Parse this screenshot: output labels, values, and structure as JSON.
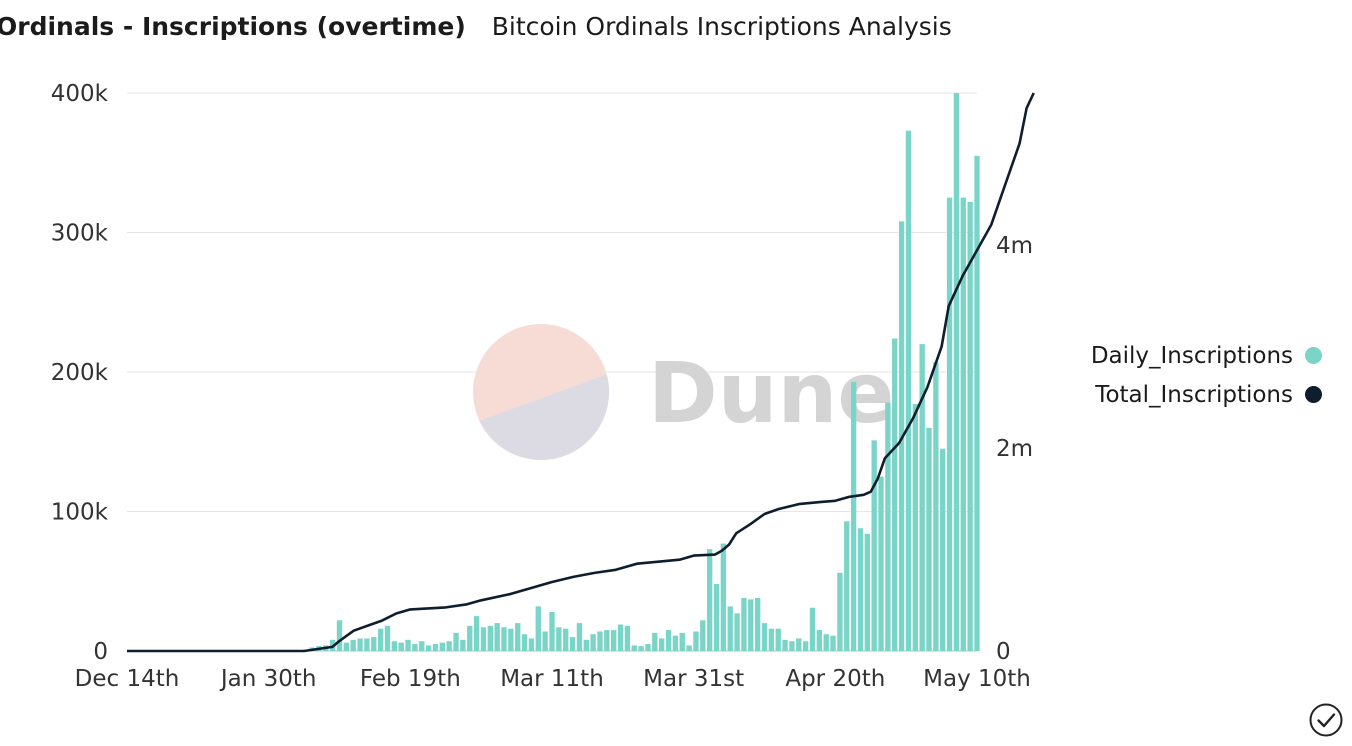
{
  "header": {
    "title": "Ordinals - Inscriptions (overtime)",
    "subtitle": "Bitcoin Ordinals Inscriptions Analysis"
  },
  "watermark": "Dune",
  "colors": {
    "bar": "#7ad4c8",
    "line": "#0e1e2e",
    "grid": "#e6e6e6",
    "logo_top": "#f6dcd4",
    "logo_bottom": "#dcdbe4",
    "watermark_text": "#d4d4d4"
  },
  "chart_data": {
    "type": "bar+line",
    "title": "Ordinals - Inscriptions (overtime)",
    "subtitle": "Bitcoin Ordinals Inscriptions Analysis",
    "x_labels": [
      "Dec 14th",
      "Jan 30th",
      "Feb 19th",
      "Mar 11th",
      "Mar 31st",
      "Apr 20th",
      "May 10th"
    ],
    "x_label_days": [
      0,
      20,
      40,
      60,
      80,
      100,
      120
    ],
    "y_left": {
      "ylim": [
        0,
        400000
      ],
      "ticks": [
        0,
        100000,
        200000,
        300000,
        400000
      ],
      "tick_labels": [
        "0",
        "100k",
        "200k",
        "300k",
        "400k"
      ]
    },
    "y_right": {
      "ylim": [
        0,
        5500000
      ],
      "ticks": [
        0,
        2000000,
        4000000
      ],
      "tick_labels": [
        "0",
        "2m",
        "4m"
      ]
    },
    "series": [
      {
        "name": "Daily_Inscriptions",
        "axis": "left",
        "type": "bar",
        "values": [
          0,
          0,
          0,
          0,
          0,
          0,
          0,
          0,
          0,
          0,
          0,
          0,
          0,
          0,
          0,
          0,
          0,
          0,
          0,
          0,
          0,
          0,
          0,
          0,
          0,
          0,
          1000,
          2500,
          3500,
          4000,
          8000,
          22000,
          6000,
          8000,
          9000,
          9000,
          10000,
          16000,
          18000,
          7000,
          6000,
          8000,
          5000,
          7000,
          4000,
          5000,
          6000,
          7000,
          13000,
          8000,
          18000,
          25000,
          17000,
          18000,
          20000,
          17000,
          16000,
          20000,
          12000,
          9000,
          32000,
          14000,
          28000,
          17000,
          16000,
          10000,
          20000,
          8000,
          12000,
          14000,
          15000,
          15000,
          19000,
          18000,
          4000,
          3500,
          5000,
          13000,
          9000,
          15000,
          11000,
          13000,
          4000,
          14000,
          22000,
          73000,
          48000,
          77000,
          32000,
          27000,
          38000,
          37000,
          38000,
          20000,
          16000,
          16000,
          8000,
          7000,
          9000,
          7000,
          31000,
          15000,
          12000,
          11000,
          56000,
          93000,
          193000,
          88000,
          84000,
          151000,
          125000,
          178000,
          224000,
          308000,
          373000,
          177000,
          220000,
          160000,
          207000,
          145000,
          325000,
          400000,
          325000,
          322000,
          355000
        ],
        "x_start_day": 0
      },
      {
        "name": "Total_Inscriptions",
        "axis": "right",
        "type": "line",
        "points": [
          [
            0,
            0
          ],
          [
            25,
            0
          ],
          [
            29,
            40000
          ],
          [
            30,
            100000
          ],
          [
            32,
            200000
          ],
          [
            34,
            250000
          ],
          [
            36,
            300000
          ],
          [
            38,
            370000
          ],
          [
            40,
            410000
          ],
          [
            45,
            430000
          ],
          [
            48,
            460000
          ],
          [
            50,
            500000
          ],
          [
            54,
            560000
          ],
          [
            57,
            620000
          ],
          [
            60,
            680000
          ],
          [
            63,
            730000
          ],
          [
            66,
            770000
          ],
          [
            69,
            800000
          ],
          [
            72,
            860000
          ],
          [
            75,
            880000
          ],
          [
            78,
            900000
          ],
          [
            80,
            940000
          ],
          [
            83,
            950000
          ],
          [
            84,
            990000
          ],
          [
            85,
            1050000
          ],
          [
            86,
            1160000
          ],
          [
            88,
            1250000
          ],
          [
            90,
            1350000
          ],
          [
            92,
            1400000
          ],
          [
            95,
            1450000
          ],
          [
            98,
            1470000
          ],
          [
            100,
            1480000
          ],
          [
            102,
            1520000
          ],
          [
            104,
            1540000
          ],
          [
            105,
            1570000
          ],
          [
            106,
            1700000
          ],
          [
            107,
            1900000
          ],
          [
            109,
            2050000
          ],
          [
            111,
            2300000
          ],
          [
            113,
            2600000
          ],
          [
            115,
            3000000
          ],
          [
            116,
            3400000
          ],
          [
            118,
            3700000
          ],
          [
            120,
            3950000
          ],
          [
            122,
            4200000
          ],
          [
            124,
            4600000
          ],
          [
            126,
            5000000
          ],
          [
            127,
            5350000
          ],
          [
            128,
            5500000
          ]
        ]
      }
    ],
    "legend": [
      "Daily_Inscriptions",
      "Total_Inscriptions"
    ],
    "legend_position": "right"
  }
}
